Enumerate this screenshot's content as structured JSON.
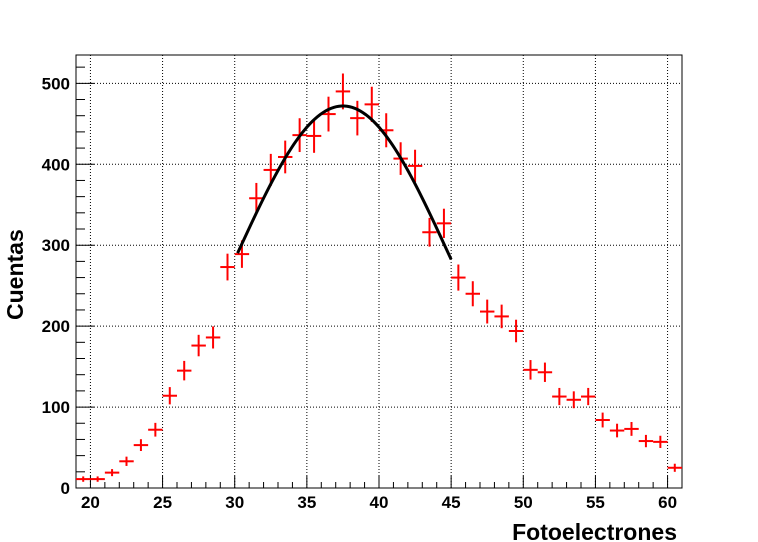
{
  "chart_data": {
    "type": "scatter",
    "title": "",
    "xlabel": "Fotoelectrones",
    "ylabel": "Cuentas",
    "xlim": [
      19,
      61
    ],
    "ylim": [
      0,
      535
    ],
    "x_ticks": [
      20,
      25,
      30,
      35,
      40,
      45,
      50,
      55,
      60
    ],
    "y_ticks": [
      0,
      100,
      200,
      300,
      400,
      500
    ],
    "grid": true,
    "legend": "none",
    "colors": {
      "data": "#ff0000",
      "fit": "#000000",
      "grid": "#000000"
    },
    "series": [
      {
        "type": "errorbar",
        "bin_half_width": 0.5,
        "x": [
          19.5,
          20.5,
          21.5,
          22.5,
          23.5,
          24.5,
          25.5,
          26.5,
          27.5,
          28.5,
          29.5,
          30.5,
          31.5,
          32.5,
          33.5,
          34.5,
          35.5,
          36.5,
          37.5,
          38.5,
          39.5,
          40.5,
          41.5,
          42.5,
          43.5,
          44.5,
          45.5,
          46.5,
          47.5,
          48.5,
          49.5,
          50.5,
          51.5,
          52.5,
          53.5,
          54.5,
          55.5,
          56.5,
          57.5,
          58.5,
          59.5,
          60.5
        ],
        "y": [
          11,
          11,
          19,
          33,
          53,
          72,
          114,
          145,
          176,
          186,
          273,
          289,
          358,
          393,
          409,
          436,
          435,
          462,
          490,
          457,
          474,
          442,
          407,
          398,
          316,
          327,
          260,
          240,
          218,
          212,
          194,
          146,
          143,
          113,
          109,
          113,
          84,
          71,
          73,
          58,
          57,
          25
        ]
      },
      {
        "type": "line",
        "curve": "gaussian",
        "x_range": [
          30.2,
          45.0
        ],
        "amplitude": 472,
        "mean": 37.5,
        "sigma": 7.4
      }
    ]
  }
}
